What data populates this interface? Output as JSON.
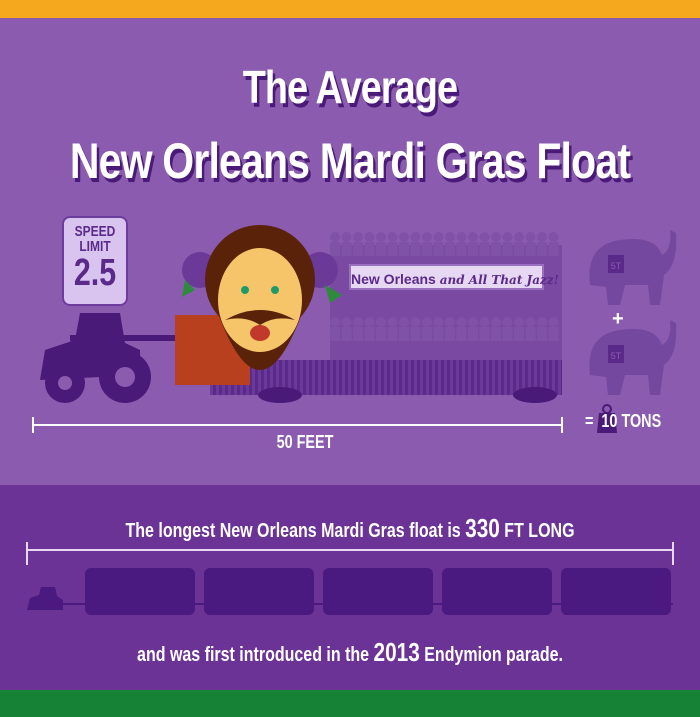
{
  "title": {
    "line1": "The Average",
    "line2": "New Orleans Mardi Gras Float"
  },
  "speed_sign": {
    "label1": "SPEED",
    "label2": "LIMIT",
    "value": "2.5"
  },
  "float_banner": {
    "main": "New Orleans",
    "script": "and All That Jazz!"
  },
  "length_label": "50 FEET",
  "weight": {
    "per_elephant": "5T",
    "plus": "+",
    "equals": "=",
    "total": "10 TONS"
  },
  "longest": {
    "prefix": "The longest New Orleans Mardi Gras float is",
    "value": "330",
    "unit": "FT LONG"
  },
  "introduced": {
    "prefix": "and was first introduced in the",
    "year": "2013",
    "suffix": "Endymion parade."
  },
  "colors": {
    "top_stripe": "#f5a81e",
    "upper_bg": "#8a5bae",
    "lower_bg": "#6b3396",
    "bottom_stripe": "#168236",
    "dark_purple": "#4a1a78"
  }
}
